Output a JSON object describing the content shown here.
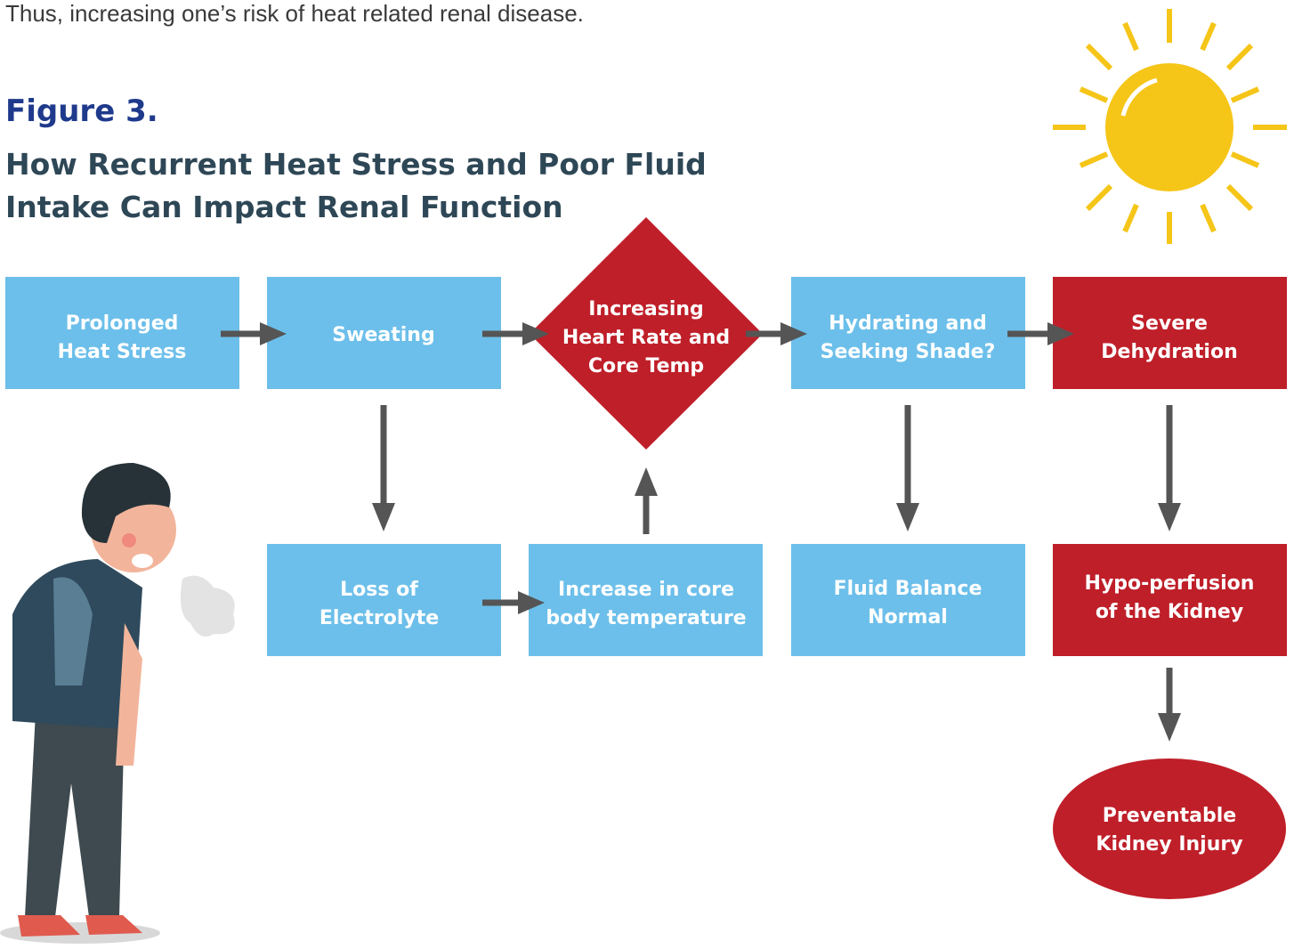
{
  "intro": "Thus, increasing one’s risk of heat related renal disease.",
  "figure_label": "Figure 3.",
  "title_lines": [
    "How Recurrent Heat Stress and Poor Fluid",
    "Intake Can Impact Renal Function"
  ],
  "nodes": [
    {
      "lines": [
        "Prolonged",
        "Heat Stress"
      ]
    },
    {
      "lines": [
        "Sweating"
      ]
    },
    {
      "lines": [
        "Increasing",
        "Heart Rate and",
        "Core Temp"
      ]
    },
    {
      "lines": [
        "Hydrating and",
        "Seeking Shade?"
      ]
    },
    {
      "lines": [
        "Severe",
        "Dehydration"
      ]
    },
    {
      "lines": [
        "Loss of",
        "Electrolyte"
      ]
    },
    {
      "lines": [
        "Increase in core",
        "body temperature"
      ]
    },
    {
      "lines": [
        "Fluid Balance",
        "Normal"
      ]
    },
    {
      "lines": [
        "Hypo-perfusion",
        "of the Kidney"
      ]
    },
    {
      "lines": [
        "Preventable",
        "Kidney Injury"
      ]
    }
  ]
}
